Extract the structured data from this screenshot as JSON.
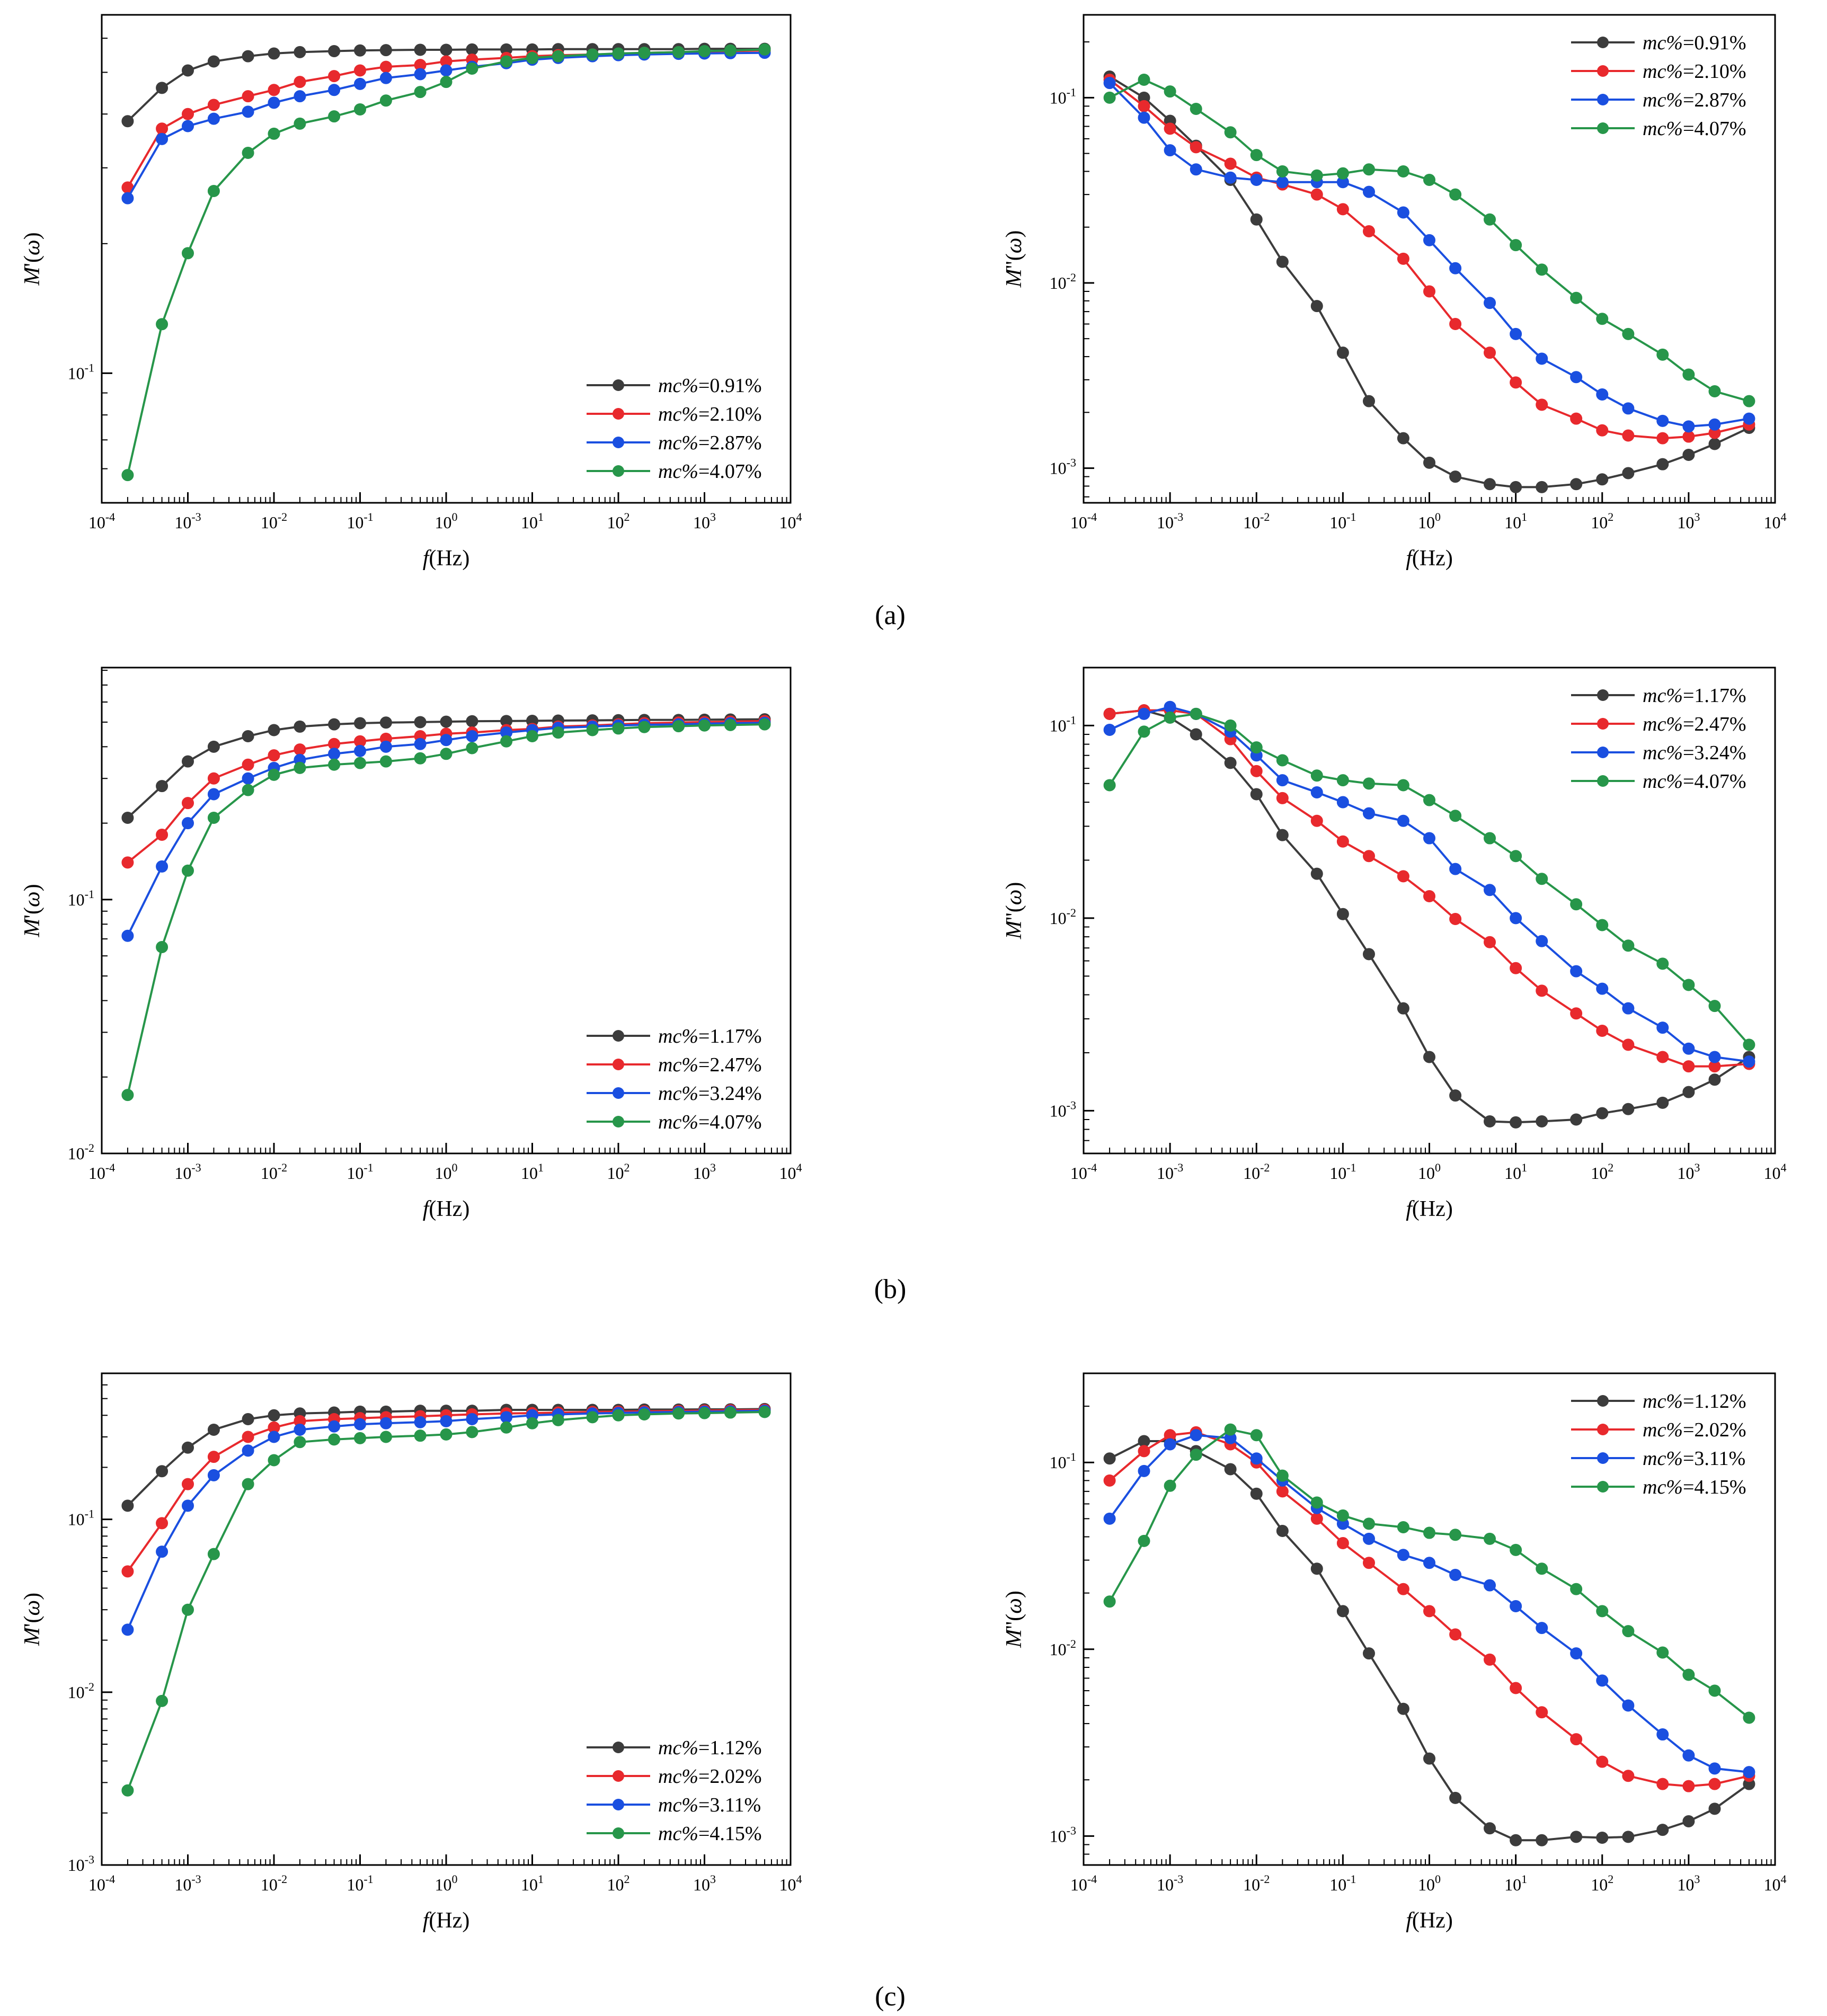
{
  "colors": {
    "black": "#3c3c3c",
    "red": "#e8292d",
    "blue": "#1a4fe0",
    "green": "#27964a"
  },
  "x_labels": [
    "10-4",
    "10-3",
    "10-2",
    "10-1",
    "100",
    "101",
    "102",
    "103",
    "104"
  ],
  "x_title": {
    "prefix": "f",
    "suffix": "(Hz)"
  },
  "panel_labels": {
    "a": "(a)",
    "b": "(b)",
    "c": "(c)"
  },
  "chart_data": [
    {
      "id": "a-left",
      "panel": "(a)",
      "type": "line",
      "xscale": "log",
      "yscale": "log",
      "xlim": [
        0.0001,
        10000
      ],
      "ylim": [
        0.05,
        0.68
      ],
      "ylabel": "M'(ω)",
      "xlabel": "f(Hz)",
      "y_ticks": [
        {
          "value": 0.1,
          "label": "10-1"
        }
      ],
      "legend_position": "bottom-right",
      "x": [
        0.0002,
        0.0005,
        0.001,
        0.002,
        0.005,
        0.01,
        0.02,
        0.05,
        0.1,
        0.2,
        0.5,
        1,
        2,
        5,
        10,
        20,
        50,
        100,
        200,
        500,
        1000,
        2000,
        5000
      ],
      "series": [
        {
          "name": "mc%=0.91%",
          "color_key": "black",
          "values": [
            0.385,
            0.46,
            0.505,
            0.53,
            0.545,
            0.553,
            0.557,
            0.56,
            0.562,
            0.563,
            0.564,
            0.564,
            0.565,
            0.565,
            0.565,
            0.566,
            0.566,
            0.566,
            0.566,
            0.566,
            0.567,
            0.567,
            0.567
          ]
        },
        {
          "name": "mc%=2.10%",
          "color_key": "red",
          "values": [
            0.27,
            0.37,
            0.4,
            0.42,
            0.44,
            0.455,
            0.475,
            0.49,
            0.505,
            0.515,
            0.52,
            0.53,
            0.535,
            0.54,
            0.545,
            0.548,
            0.55,
            0.552,
            0.555,
            0.557,
            0.558,
            0.56,
            0.562
          ]
        },
        {
          "name": "mc%=2.87%",
          "color_key": "blue",
          "values": [
            0.255,
            0.35,
            0.375,
            0.39,
            0.405,
            0.425,
            0.44,
            0.455,
            0.47,
            0.485,
            0.495,
            0.505,
            0.515,
            0.525,
            0.535,
            0.54,
            0.545,
            0.548,
            0.55,
            0.552,
            0.553,
            0.554,
            0.555
          ]
        },
        {
          "name": "mc%=4.07%",
          "color_key": "green",
          "values": [
            0.058,
            0.13,
            0.19,
            0.265,
            0.325,
            0.36,
            0.38,
            0.395,
            0.41,
            0.43,
            0.45,
            0.475,
            0.51,
            0.53,
            0.54,
            0.545,
            0.55,
            0.553,
            0.555,
            0.557,
            0.56,
            0.562,
            0.565
          ]
        }
      ]
    },
    {
      "id": "a-right",
      "panel": "(a)",
      "type": "line",
      "xscale": "log",
      "yscale": "log",
      "xlim": [
        0.0001,
        10000
      ],
      "ylim": [
        0.00065,
        0.28
      ],
      "ylabel": "M''(ω)",
      "xlabel": "f(Hz)",
      "y_ticks": [
        {
          "value": 0.001,
          "label": "10-3"
        },
        {
          "value": 0.01,
          "label": "10-2"
        },
        {
          "value": 0.1,
          "label": "10-1"
        }
      ],
      "legend_position": "top-right",
      "x": [
        0.0002,
        0.0005,
        0.001,
        0.002,
        0.005,
        0.01,
        0.02,
        0.05,
        0.1,
        0.2,
        0.5,
        1,
        2,
        5,
        10,
        20,
        50,
        100,
        200,
        500,
        1000,
        2000,
        5000
      ],
      "series": [
        {
          "name": "mc%=0.91%",
          "color_key": "black",
          "values": [
            0.13,
            0.1,
            0.075,
            0.055,
            0.036,
            0.022,
            0.013,
            0.0075,
            0.0042,
            0.0023,
            0.00145,
            0.00107,
            0.0009,
            0.00082,
            0.00079,
            0.00079,
            0.00082,
            0.00087,
            0.00094,
            0.00105,
            0.00118,
            0.00135,
            0.00165
          ]
        },
        {
          "name": "mc%=2.10%",
          "color_key": "red",
          "values": [
            0.125,
            0.09,
            0.068,
            0.054,
            0.044,
            0.037,
            0.034,
            0.03,
            0.025,
            0.019,
            0.0135,
            0.009,
            0.006,
            0.0042,
            0.0029,
            0.0022,
            0.00185,
            0.0016,
            0.0015,
            0.00145,
            0.00148,
            0.00155,
            0.00172
          ]
        },
        {
          "name": "mc%=2.87%",
          "color_key": "blue",
          "values": [
            0.12,
            0.078,
            0.052,
            0.041,
            0.037,
            0.036,
            0.035,
            0.035,
            0.035,
            0.031,
            0.024,
            0.017,
            0.012,
            0.0078,
            0.0053,
            0.0039,
            0.0031,
            0.0025,
            0.0021,
            0.0018,
            0.00168,
            0.00172,
            0.00185
          ]
        },
        {
          "name": "mc%=4.07%",
          "color_key": "green",
          "values": [
            0.1,
            0.125,
            0.108,
            0.087,
            0.065,
            0.049,
            0.04,
            0.038,
            0.039,
            0.041,
            0.04,
            0.036,
            0.03,
            0.022,
            0.016,
            0.0118,
            0.0083,
            0.0064,
            0.0053,
            0.0041,
            0.0032,
            0.0026,
            0.0023
          ]
        }
      ]
    },
    {
      "id": "b-left",
      "panel": "(b)",
      "type": "line",
      "xscale": "log",
      "yscale": "log",
      "xlim": [
        0.0001,
        10000
      ],
      "ylim": [
        0.01,
        0.82
      ],
      "ylabel": "M'(ω)",
      "xlabel": "f(Hz)",
      "y_ticks": [
        {
          "value": 0.01,
          "label": "10-2"
        },
        {
          "value": 0.1,
          "label": "10-1"
        }
      ],
      "legend_position": "bottom-right",
      "x": [
        0.0002,
        0.0005,
        0.001,
        0.002,
        0.005,
        0.01,
        0.02,
        0.05,
        0.1,
        0.2,
        0.5,
        1,
        2,
        5,
        10,
        20,
        50,
        100,
        200,
        500,
        1000,
        2000,
        5000
      ],
      "series": [
        {
          "name": "mc%=1.17%",
          "color_key": "black",
          "values": [
            0.21,
            0.28,
            0.35,
            0.4,
            0.44,
            0.465,
            0.48,
            0.49,
            0.495,
            0.498,
            0.5,
            0.502,
            0.504,
            0.505,
            0.506,
            0.507,
            0.508,
            0.509,
            0.51,
            0.51,
            0.511,
            0.512,
            0.513
          ]
        },
        {
          "name": "mc%=2.47%",
          "color_key": "red",
          "values": [
            0.14,
            0.18,
            0.24,
            0.3,
            0.34,
            0.37,
            0.39,
            0.41,
            0.42,
            0.43,
            0.44,
            0.45,
            0.455,
            0.465,
            0.47,
            0.48,
            0.485,
            0.49,
            0.495,
            0.498,
            0.5,
            0.502,
            0.505
          ]
        },
        {
          "name": "mc%=3.24%",
          "color_key": "blue",
          "values": [
            0.072,
            0.135,
            0.2,
            0.26,
            0.3,
            0.33,
            0.355,
            0.375,
            0.385,
            0.4,
            0.41,
            0.425,
            0.44,
            0.455,
            0.465,
            0.475,
            0.48,
            0.485,
            0.488,
            0.49,
            0.493,
            0.495,
            0.497
          ]
        },
        {
          "name": "mc%=4.07%",
          "color_key": "green",
          "values": [
            0.017,
            0.065,
            0.13,
            0.21,
            0.27,
            0.31,
            0.33,
            0.34,
            0.345,
            0.35,
            0.36,
            0.375,
            0.395,
            0.42,
            0.44,
            0.455,
            0.465,
            0.472,
            0.478,
            0.482,
            0.485,
            0.487,
            0.49
          ]
        }
      ]
    },
    {
      "id": "b-right",
      "panel": "(b)",
      "type": "line",
      "xscale": "log",
      "yscale": "log",
      "xlim": [
        0.0001,
        10000
      ],
      "ylim": [
        0.0006,
        0.2
      ],
      "ylabel": "M''(ω)",
      "xlabel": "f(Hz)",
      "y_ticks": [
        {
          "value": 0.001,
          "label": "10-3"
        },
        {
          "value": 0.01,
          "label": "10-2"
        },
        {
          "value": 0.1,
          "label": "10-1"
        }
      ],
      "legend_position": "top-right",
      "x": [
        0.0002,
        0.0005,
        0.001,
        0.002,
        0.005,
        0.01,
        0.02,
        0.05,
        0.1,
        0.2,
        0.5,
        1,
        2,
        5,
        10,
        20,
        50,
        100,
        200,
        500,
        1000,
        2000,
        5000
      ],
      "series": [
        {
          "name": "mc%=1.17%",
          "color_key": "black",
          "values": [
            0.115,
            0.12,
            0.11,
            0.09,
            0.064,
            0.044,
            0.027,
            0.017,
            0.0105,
            0.0065,
            0.0034,
            0.0019,
            0.0012,
            0.00088,
            0.00087,
            0.00088,
            0.0009,
            0.00097,
            0.00102,
            0.0011,
            0.00125,
            0.00145,
            0.0019
          ]
        },
        {
          "name": "mc%=2.47%",
          "color_key": "red",
          "values": [
            0.115,
            0.12,
            0.12,
            0.115,
            0.085,
            0.058,
            0.042,
            0.032,
            0.025,
            0.021,
            0.0165,
            0.013,
            0.0099,
            0.0075,
            0.0055,
            0.0042,
            0.0032,
            0.0026,
            0.0022,
            0.0019,
            0.0017,
            0.0017,
            0.00175
          ]
        },
        {
          "name": "mc%=3.24%",
          "color_key": "blue",
          "values": [
            0.095,
            0.115,
            0.125,
            0.115,
            0.093,
            0.07,
            0.052,
            0.045,
            0.04,
            0.035,
            0.032,
            0.026,
            0.018,
            0.014,
            0.01,
            0.0076,
            0.0053,
            0.0043,
            0.0034,
            0.0027,
            0.0021,
            0.0019,
            0.0018
          ]
        },
        {
          "name": "mc%=4.07%",
          "color_key": "green",
          "values": [
            0.049,
            0.093,
            0.11,
            0.115,
            0.1,
            0.077,
            0.066,
            0.055,
            0.052,
            0.05,
            0.049,
            0.041,
            0.034,
            0.026,
            0.021,
            0.016,
            0.0118,
            0.0092,
            0.0072,
            0.0058,
            0.0045,
            0.0035,
            0.0022
          ]
        }
      ]
    },
    {
      "id": "c-left",
      "panel": "(c)",
      "type": "line",
      "xscale": "log",
      "yscale": "log",
      "xlim": [
        0.0001,
        10000
      ],
      "ylim": [
        0.001,
        0.7
      ],
      "ylabel": "M'(ω)",
      "xlabel": "f(Hz)",
      "y_ticks": [
        {
          "value": 0.001,
          "label": "10-3"
        },
        {
          "value": 0.01,
          "label": "10-2"
        },
        {
          "value": 0.1,
          "label": "10-1"
        }
      ],
      "legend_position": "bottom-right",
      "x": [
        0.0002,
        0.0005,
        0.001,
        0.002,
        0.005,
        0.01,
        0.02,
        0.05,
        0.1,
        0.2,
        0.5,
        1,
        2,
        5,
        10,
        20,
        50,
        100,
        200,
        500,
        1000,
        2000,
        5000
      ],
      "series": [
        {
          "name": "mc%=1.12%",
          "color_key": "black",
          "values": [
            0.12,
            0.19,
            0.26,
            0.33,
            0.38,
            0.4,
            0.41,
            0.415,
            0.42,
            0.42,
            0.425,
            0.425,
            0.425,
            0.43,
            0.43,
            0.43,
            0.43,
            0.43,
            0.432,
            0.432,
            0.433,
            0.433,
            0.435
          ]
        },
        {
          "name": "mc%=2.02%",
          "color_key": "red",
          "values": [
            0.05,
            0.095,
            0.16,
            0.23,
            0.3,
            0.34,
            0.37,
            0.38,
            0.385,
            0.39,
            0.395,
            0.4,
            0.405,
            0.41,
            0.412,
            0.415,
            0.418,
            0.42,
            0.422,
            0.424,
            0.426,
            0.428,
            0.43
          ]
        },
        {
          "name": "mc%=3.11%",
          "color_key": "blue",
          "values": [
            0.023,
            0.065,
            0.12,
            0.18,
            0.25,
            0.3,
            0.33,
            0.345,
            0.355,
            0.36,
            0.365,
            0.37,
            0.38,
            0.39,
            0.4,
            0.405,
            0.41,
            0.413,
            0.416,
            0.418,
            0.42,
            0.422,
            0.425
          ]
        },
        {
          "name": "mc%=4.15%",
          "color_key": "green",
          "values": [
            0.0027,
            0.0089,
            0.03,
            0.063,
            0.16,
            0.22,
            0.28,
            0.29,
            0.295,
            0.3,
            0.305,
            0.31,
            0.32,
            0.34,
            0.36,
            0.375,
            0.39,
            0.4,
            0.405,
            0.41,
            0.412,
            0.415,
            0.418
          ]
        }
      ]
    },
    {
      "id": "c-right",
      "panel": "(c)",
      "type": "line",
      "xscale": "log",
      "yscale": "log",
      "xlim": [
        0.0001,
        10000
      ],
      "ylim": [
        0.0007,
        0.3
      ],
      "ylabel": "M''(ω)",
      "xlabel": "f(Hz)",
      "y_ticks": [
        {
          "value": 0.001,
          "label": "10-3"
        },
        {
          "value": 0.01,
          "label": "10-2"
        },
        {
          "value": 0.1,
          "label": "10-1"
        }
      ],
      "legend_position": "top-right",
      "x": [
        0.0002,
        0.0005,
        0.001,
        0.002,
        0.005,
        0.01,
        0.02,
        0.05,
        0.1,
        0.2,
        0.5,
        1,
        2,
        5,
        10,
        20,
        50,
        100,
        200,
        500,
        1000,
        2000,
        5000
      ],
      "series": [
        {
          "name": "mc%=1.12%",
          "color_key": "black",
          "values": [
            0.105,
            0.13,
            0.13,
            0.115,
            0.092,
            0.068,
            0.043,
            0.027,
            0.016,
            0.0095,
            0.0048,
            0.0026,
            0.0016,
            0.0011,
            0.00095,
            0.00095,
            0.00099,
            0.00098,
            0.00099,
            0.00108,
            0.0012,
            0.0014,
            0.0019
          ]
        },
        {
          "name": "mc%=2.02%",
          "color_key": "red",
          "values": [
            0.08,
            0.115,
            0.14,
            0.145,
            0.125,
            0.1,
            0.07,
            0.05,
            0.037,
            0.029,
            0.021,
            0.016,
            0.012,
            0.0088,
            0.0062,
            0.0046,
            0.0033,
            0.0025,
            0.0021,
            0.0019,
            0.00185,
            0.0019,
            0.0021
          ]
        },
        {
          "name": "mc%=3.11%",
          "color_key": "blue",
          "values": [
            0.05,
            0.09,
            0.125,
            0.14,
            0.135,
            0.105,
            0.08,
            0.057,
            0.047,
            0.039,
            0.032,
            0.029,
            0.025,
            0.022,
            0.017,
            0.013,
            0.0095,
            0.0068,
            0.005,
            0.0035,
            0.0027,
            0.0023,
            0.0022
          ]
        },
        {
          "name": "mc%=4.15%",
          "color_key": "green",
          "values": [
            0.018,
            0.038,
            0.075,
            0.11,
            0.15,
            0.14,
            0.085,
            0.061,
            0.052,
            0.047,
            0.045,
            0.042,
            0.041,
            0.039,
            0.034,
            0.027,
            0.021,
            0.016,
            0.0125,
            0.0096,
            0.0073,
            0.006,
            0.0043
          ]
        }
      ]
    }
  ]
}
